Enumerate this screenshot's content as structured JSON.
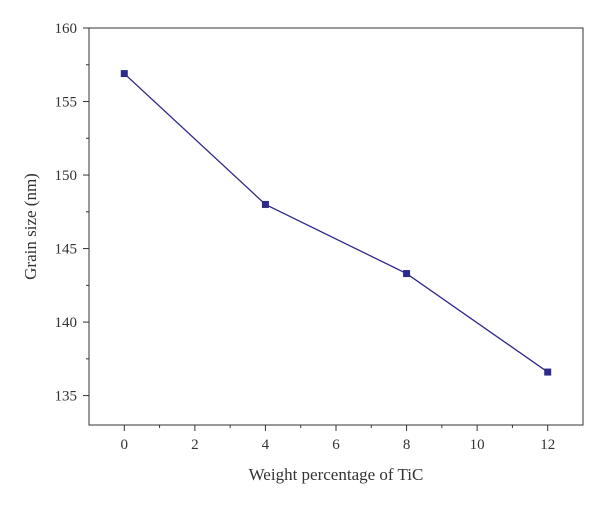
{
  "chart_data": {
    "type": "line",
    "title": "",
    "xlabel": "Weight percentage of TiC",
    "ylabel": "Grain size (nm)",
    "xlim": [
      -1,
      13
    ],
    "ylim": [
      133,
      160
    ],
    "xticks": [
      0,
      2,
      4,
      6,
      8,
      10,
      12
    ],
    "yticks": [
      135,
      140,
      145,
      150,
      155,
      160
    ],
    "grid": false,
    "series": [
      {
        "x": [
          0,
          4,
          8,
          12
        ],
        "y": [
          156.9,
          148.0,
          143.3,
          136.6
        ],
        "color": "#2e2a8a",
        "marker": "square"
      }
    ]
  }
}
